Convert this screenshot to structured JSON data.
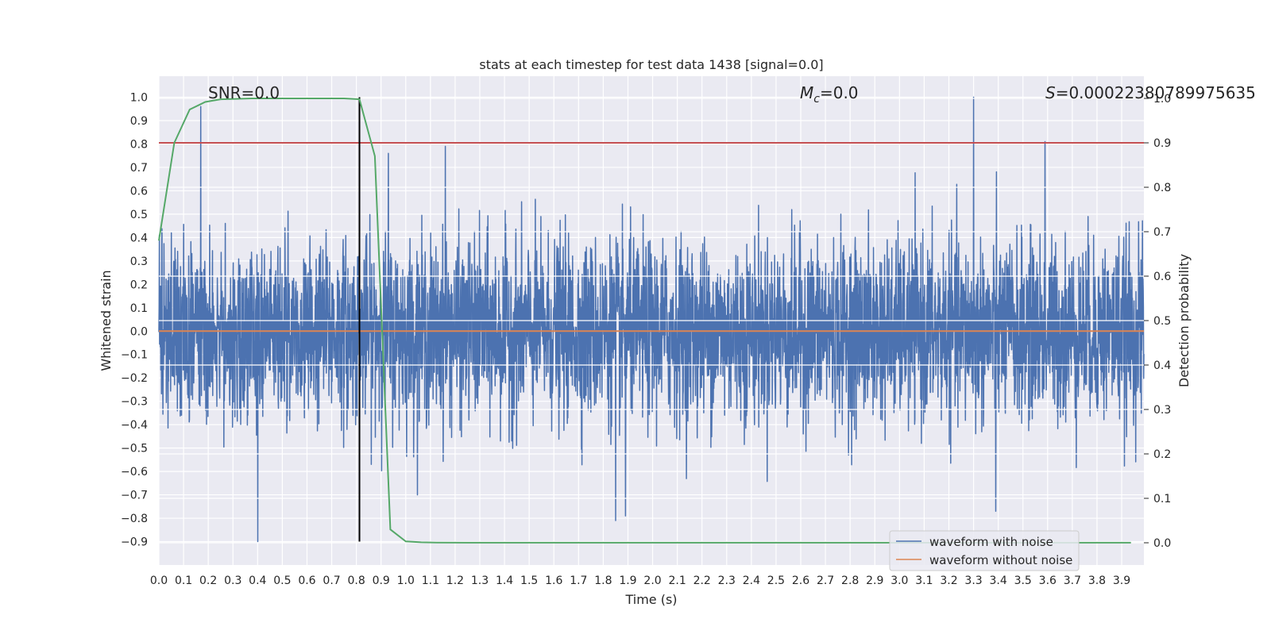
{
  "chart_data": {
    "type": "line",
    "title": "stats at each timestep for test data 1438 [signal=0.0]",
    "xlabel": "Time (s)",
    "ylabel": "Whitened strain",
    "y2label": "Detection probability",
    "xlim": [
      0.0,
      3.99
    ],
    "ylim": [
      -1.0,
      1.09
    ],
    "y2lim": [
      -0.05,
      1.05
    ],
    "x_ticks": [
      "0.0",
      "0.1",
      "0.2",
      "0.3",
      "0.4",
      "0.5",
      "0.6",
      "0.7",
      "0.8",
      "0.9",
      "1.0",
      "1.1",
      "1.2",
      "1.3",
      "1.4",
      "1.5",
      "1.6",
      "1.7",
      "1.8",
      "1.9",
      "2.0",
      "2.1",
      "2.2",
      "2.3",
      "2.4",
      "2.5",
      "2.6",
      "2.7",
      "2.8",
      "2.9",
      "3.0",
      "3.1",
      "3.2",
      "3.3",
      "3.4",
      "3.5",
      "3.6",
      "3.7",
      "3.8",
      "3.9"
    ],
    "y_ticks": [
      "−0.9",
      "−0.8",
      "−0.7",
      "−0.6",
      "−0.5",
      "−0.4",
      "−0.3",
      "−0.2",
      "−0.1",
      "0.0",
      "0.1",
      "0.2",
      "0.3",
      "0.4",
      "0.5",
      "0.6",
      "0.7",
      "0.8",
      "0.9",
      "1.0"
    ],
    "y2_ticks": [
      "0.0",
      "0.1",
      "0.2",
      "0.3",
      "0.4",
      "0.5",
      "0.6",
      "0.7",
      "0.8",
      "0.9",
      "1.0"
    ],
    "annotations": {
      "snr": "SNR=0.0",
      "mc_symbol": "M",
      "mc_sub": "c",
      "mc_value": "=0.0",
      "s_symbol": "S",
      "s_value": "=0.00022380789975635"
    },
    "legend": {
      "location": "lower-right",
      "entries": [
        "waveform with noise",
        "waveform without noise"
      ]
    },
    "series": [
      {
        "name": "waveform with noise",
        "color": "#4c72b0",
        "axis": "left",
        "kind": "noise",
        "x_range": [
          0.0,
          3.99
        ],
        "n_samples": 4096,
        "min": -0.9,
        "max": 1.0,
        "spikes": [
          [
            0.17,
            0.96
          ],
          [
            3.3,
            1.0
          ],
          [
            3.59,
            0.81
          ],
          [
            0.4,
            -0.9
          ],
          [
            1.85,
            -0.81
          ],
          [
            1.89,
            -0.79
          ],
          [
            3.39,
            -0.77
          ],
          [
            1.16,
            0.79
          ],
          [
            0.93,
            0.76
          ]
        ]
      },
      {
        "name": "waveform without noise",
        "color": "#dd8452",
        "axis": "left",
        "x": [
          0.0,
          3.99
        ],
        "y": [
          0.0,
          0.0
        ]
      },
      {
        "name": "detection probability",
        "color": "#55a868",
        "axis": "right",
        "x": [
          0.0,
          0.0625,
          0.125,
          0.1875,
          0.25,
          0.3125,
          0.375,
          0.4375,
          0.5,
          0.5625,
          0.625,
          0.6875,
          0.75,
          0.8125,
          0.875,
          0.9375,
          1.0,
          1.0625,
          1.125,
          1.25,
          1.5,
          2.0,
          2.5,
          3.0,
          3.5,
          3.9375
        ],
        "y": [
          0.68,
          0.9,
          0.975,
          0.992,
          0.998,
          0.999,
          1.0,
          1.0,
          1.0,
          1.0,
          1.0,
          1.0,
          1.0,
          0.998,
          0.87,
          0.03,
          0.003,
          0.001,
          0.0005,
          0.0002,
          0.0001,
          0.0001,
          0.0001,
          0.0001,
          0.0001,
          0.0001
        ]
      }
    ],
    "threshold": {
      "axis": "right",
      "value": 0.9,
      "color": "#c44e52"
    },
    "marker_line": {
      "x": 0.8125,
      "y_from": -0.9,
      "y_to": 1.0,
      "color": "#000000"
    }
  }
}
